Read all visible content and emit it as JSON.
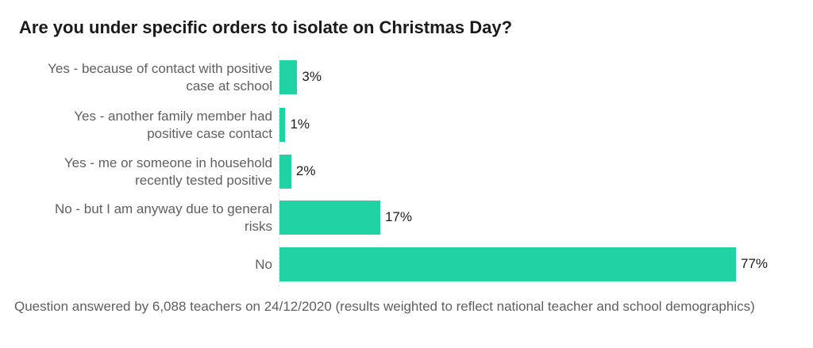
{
  "chart_data": {
    "type": "bar",
    "orientation": "horizontal",
    "title": "Are you under specific orders to isolate on Christmas Day?",
    "categories": [
      "Yes - because of contact with positive case at school",
      "Yes - another family member had positive case contact",
      "Yes - me or someone in household recently tested positive",
      "No - but I am anyway due to general risks",
      "No"
    ],
    "category_lines": [
      [
        "Yes - because of contact with positive",
        "case at school"
      ],
      [
        "Yes - another family member had",
        "positive case contact"
      ],
      [
        "Yes - me or someone in household",
        "recently tested positive"
      ],
      [
        "No - but I am anyway due to general",
        "risks"
      ],
      [
        "No"
      ]
    ],
    "values": [
      3,
      1,
      2,
      17,
      77
    ],
    "value_labels": [
      "3%",
      "1%",
      "2%",
      "17%",
      "77%"
    ],
    "unit": "%",
    "xlabel": "",
    "ylabel": "",
    "xlim": [
      0,
      77
    ],
    "grid": false,
    "bar_color": "#21d2a5",
    "footnote": "Question answered by 6,088 teachers on 24/12/2020 (results weighted to reflect national teacher and school demographics)"
  }
}
